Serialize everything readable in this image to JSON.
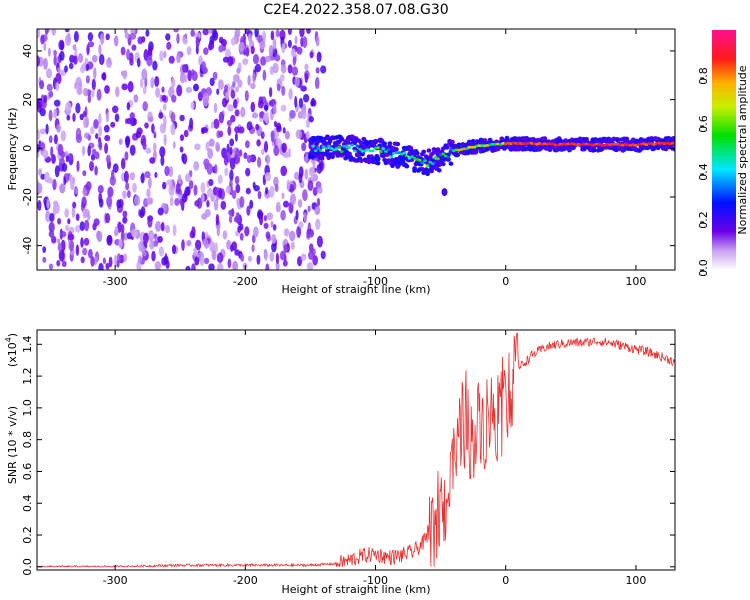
{
  "title": "C2E4.2022.358.07.08.G30",
  "chart_data": [
    {
      "type": "heatmap",
      "xlabel": "Height of straight line (km)",
      "ylabel": "Frequency (Hz)",
      "xlim": [
        -360,
        130
      ],
      "ylim": [
        -50,
        49
      ],
      "xticks": [
        -300,
        -200,
        -100,
        0,
        100
      ],
      "yticks": [
        -40,
        -20,
        0,
        20,
        40
      ],
      "grid": false,
      "colorbar": {
        "label": "Normalized spectral amplitude",
        "range": [
          0,
          1
        ],
        "ticks": [
          0.0,
          0.2,
          0.4,
          0.6,
          0.8
        ],
        "tick_labels": [
          "0.0",
          "0.2",
          "0.4",
          "0.6",
          "0.8"
        ],
        "colormap": "rainbow: white, violet, blue, cyan, green, yellow, orange, red, magenta"
      },
      "features": [
        {
          "description": "broadband noise region",
          "x_range": [
            -360,
            -140
          ],
          "freq_range": [
            -50,
            49
          ],
          "amplitude": 0.1
        },
        {
          "description": "signal line",
          "points": [
            [
              -150,
              0
            ],
            [
              -120,
              0
            ],
            [
              -100,
              -1
            ],
            [
              -80,
              -3
            ],
            [
              -60,
              -6
            ],
            [
              -50,
              -4
            ],
            [
              -40,
              -1
            ],
            [
              -20,
              1
            ],
            [
              0,
              2
            ],
            [
              50,
              1.5
            ],
            [
              100,
              1.5
            ],
            [
              130,
              2
            ]
          ],
          "amplitude_range": [
            0.3,
            0.9
          ]
        }
      ]
    },
    {
      "type": "line",
      "xlabel": "Height of straight line (km)",
      "ylabel": "SNR (10 * v/v)",
      "y_multiplier_label": "(x10",
      "y_multiplier_exponent": "4",
      "y_multiplier_close": ")",
      "xlim": [
        -360,
        130
      ],
      "ylim": [
        -0.02,
        1.49
      ],
      "xticks": [
        -300,
        -200,
        -100,
        0,
        100
      ],
      "yticks": [
        0.0,
        0.2,
        0.4,
        0.6,
        0.8,
        1.0,
        1.2,
        1.4
      ],
      "ytick_labels": [
        "0.0",
        "0.2",
        "0.4",
        "0.6",
        "0.8",
        "1.0",
        "1.2",
        "1.4"
      ],
      "grid": false,
      "series": [
        {
          "color": "#e83030",
          "x": [
            -360,
            -300,
            -250,
            -200,
            -150,
            -130,
            -120,
            -110,
            -100,
            -90,
            -80,
            -70,
            -60,
            -55,
            -50,
            -45,
            -40,
            -35,
            -30,
            -25,
            -20,
            -15,
            -10,
            -5,
            0,
            5,
            10,
            20,
            30,
            40,
            50,
            60,
            70,
            80,
            90,
            100,
            110,
            120,
            130
          ],
          "y": [
            0.0,
            0.0,
            0.01,
            0.01,
            0.01,
            0.02,
            0.04,
            0.07,
            0.08,
            0.06,
            0.07,
            0.1,
            0.18,
            0.22,
            0.3,
            0.45,
            0.55,
            0.85,
            0.9,
            0.75,
            0.95,
            0.85,
            1.0,
            0.9,
            1.05,
            1.15,
            1.25,
            1.33,
            1.38,
            1.4,
            1.41,
            1.41,
            1.42,
            1.41,
            1.39,
            1.37,
            1.35,
            1.32,
            1.29
          ]
        }
      ]
    }
  ]
}
